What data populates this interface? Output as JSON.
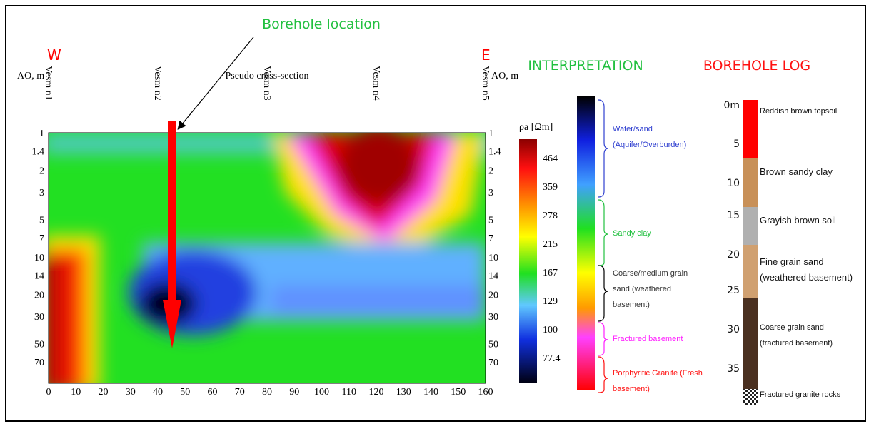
{
  "header": {
    "label": "Borehole location"
  },
  "section": {
    "title": "Pseudo cross-section",
    "west": "W",
    "east": "E",
    "left_axis": "AO, m",
    "right_axis": "AO, m",
    "stations": [
      "Vesm n1",
      "Vesm n2",
      "Vesm n3",
      "Vesm n4",
      "Vesm n5"
    ],
    "depths": [
      1,
      1.4,
      2,
      3,
      5,
      7,
      10,
      14,
      20,
      30,
      50,
      70
    ],
    "distances": [
      0,
      10,
      20,
      30,
      40,
      50,
      60,
      70,
      80,
      90,
      100,
      110,
      120,
      130,
      140,
      150,
      160
    ]
  },
  "colorbar": {
    "label": "ρa [Ωm]",
    "ticks": [
      464,
      359,
      278,
      215,
      167,
      129,
      100,
      77.4
    ]
  },
  "interpretation": {
    "title": "INTERPRETATION",
    "items": [
      "Water/sand (Aquifer/Overburden)",
      "Sandy clay",
      "Coarse/medium grain sand (weathered basement)",
      "Fractured basement",
      "Porphyritic Granite (Fresh basement)"
    ]
  },
  "borehole_log": {
    "title": "BOREHOLE LOG",
    "depths": [
      "0m",
      5,
      10,
      15,
      20,
      25,
      30,
      35
    ],
    "layers": [
      "Reddish brown topsoil",
      "Brown sandy clay",
      "Grayish brown soil",
      "Fine grain sand (weathered basement)",
      "Coarse grain sand (fractured basement)",
      "Fractured granite rocks"
    ]
  }
}
